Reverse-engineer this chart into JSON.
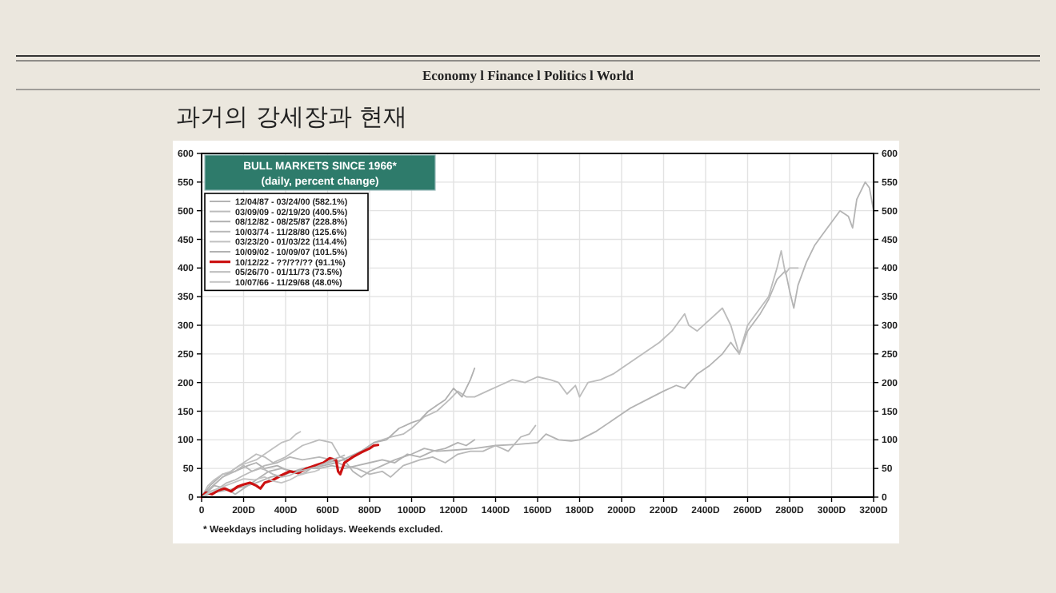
{
  "chart_data": {
    "type": "line",
    "title": "과거의 강세장과 현재",
    "subtitle": "BULL MARKETS SINCE 1966*",
    "legend_title": "(daily, percent change)",
    "annotations": [
      "Economy l Finance l Politics l World",
      "* Weekdays including holidays. Weekends excluded."
    ],
    "xlim": [
      0,
      3200
    ],
    "xticks": [
      0,
      {
        "value": 200,
        "label": "200D"
      },
      {
        "value": 400,
        "label": "400D"
      },
      {
        "value": 600,
        "label": "600D"
      },
      {
        "value": 800,
        "label": "800D"
      },
      {
        "value": 1000,
        "label": "1000D"
      },
      {
        "value": 1200,
        "label": "1200D"
      },
      {
        "value": 1400,
        "label": "1400D"
      },
      {
        "value": 1600,
        "label": "1600D"
      },
      {
        "value": 1800,
        "label": "1800D"
      },
      {
        "value": 2000,
        "label": "2000D"
      },
      {
        "value": 2200,
        "label": "2200D"
      },
      {
        "value": 2400,
        "label": "2400D"
      },
      {
        "value": 2600,
        "label": "2600D"
      },
      {
        "value": 2800,
        "label": "2800D"
      },
      {
        "value": 3000,
        "label": "3000D"
      },
      {
        "value": 3200,
        "label": "3200D"
      }
    ],
    "ylim": [
      0,
      600
    ],
    "yticks": [
      0,
      50,
      100,
      150,
      200,
      250,
      300,
      350,
      400,
      450,
      500,
      550,
      600
    ],
    "y2lim": [
      0,
      600
    ],
    "y2ticks": [
      0,
      50,
      100,
      150,
      200,
      250,
      300,
      350,
      400,
      450,
      500,
      550,
      600
    ],
    "grid": true,
    "legend": "top left",
    "line_style": "solid",
    "marker": "none",
    "series": [
      {
        "name": "12/04/87 - 03/24/00 (582.1%)",
        "color": "#b4b4b4",
        "x": [
          0,
          60,
          120,
          200,
          260,
          330,
          400,
          480,
          550,
          620,
          680,
          720,
          760,
          800,
          860,
          920,
          1000,
          1060,
          1120,
          1200,
          1300,
          1400,
          1500,
          1600,
          1640,
          1700,
          1760,
          1800,
          1880,
          1960,
          2040,
          2120,
          2200,
          2260,
          2300,
          2360,
          2420,
          2480,
          2520,
          2560,
          2600,
          2660,
          2700,
          2740,
          2780,
          2800,
          2820,
          2840,
          2880,
          2920,
          2960,
          3000,
          3040,
          3080,
          3100,
          3120,
          3160,
          3180,
          3200
        ],
        "values": [
          0,
          8,
          12,
          18,
          25,
          35,
          40,
          50,
          55,
          62,
          65,
          45,
          35,
          45,
          55,
          65,
          75,
          85,
          80,
          82,
          85,
          90,
          92,
          95,
          110,
          100,
          98,
          100,
          115,
          135,
          155,
          170,
          185,
          195,
          190,
          215,
          230,
          250,
          270,
          250,
          290,
          320,
          345,
          380,
          395,
          360,
          330,
          370,
          410,
          440,
          460,
          480,
          500,
          490,
          470,
          520,
          550,
          540,
          500
        ]
      },
      {
        "name": "03/09/09 - 02/19/20 (400.5%)",
        "color": "#bcbcbc",
        "x": [
          0,
          40,
          100,
          180,
          260,
          300,
          340,
          400,
          480,
          560,
          620,
          660,
          700,
          760,
          820,
          900,
          960,
          1000,
          1060,
          1120,
          1180,
          1220,
          1260,
          1300,
          1360,
          1420,
          1480,
          1540,
          1600,
          1660,
          1700,
          1740,
          1780,
          1800,
          1840,
          1900,
          1960,
          2000,
          2060,
          2120,
          2180,
          2240,
          2300,
          2320,
          2360,
          2420,
          2480,
          2520,
          2560,
          2600,
          2660,
          2700,
          2740,
          2760,
          2780,
          2800,
          2840
        ],
        "values": [
          0,
          15,
          35,
          55,
          75,
          70,
          60,
          70,
          90,
          100,
          95,
          70,
          65,
          80,
          95,
          105,
          110,
          120,
          140,
          150,
          170,
          185,
          175,
          175,
          185,
          195,
          205,
          200,
          210,
          205,
          200,
          180,
          195,
          175,
          200,
          205,
          215,
          225,
          240,
          255,
          270,
          290,
          320,
          300,
          290,
          310,
          330,
          300,
          250,
          300,
          330,
          350,
          400,
          430,
          390,
          400,
          400
        ]
      },
      {
        "name": "08/12/82 - 08/25/87 (228.8%)",
        "color": "#b0b0b0",
        "x": [
          0,
          40,
          100,
          160,
          220,
          260,
          300,
          360,
          420,
          480,
          520,
          580,
          640,
          700,
          760,
          820,
          880,
          940,
          1000,
          1040,
          1080,
          1120,
          1160,
          1200,
          1240,
          1280,
          1300
        ],
        "values": [
          0,
          20,
          40,
          45,
          55,
          60,
          50,
          55,
          45,
          40,
          50,
          55,
          60,
          70,
          80,
          95,
          100,
          120,
          130,
          135,
          150,
          160,
          170,
          190,
          175,
          205,
          225
        ]
      },
      {
        "name": "10/03/74 - 11/28/80 (125.6%)",
        "color": "#b8b8b8",
        "x": [
          0,
          40,
          100,
          160,
          200,
          240,
          300,
          360,
          420,
          480,
          560,
          620,
          680,
          740,
          800,
          860,
          900,
          960,
          1040,
          1100,
          1160,
          1220,
          1280,
          1340,
          1400,
          1460,
          1520,
          1560,
          1590
        ],
        "values": [
          0,
          15,
          35,
          45,
          55,
          45,
          55,
          60,
          70,
          65,
          70,
          65,
          55,
          50,
          40,
          45,
          35,
          55,
          65,
          70,
          60,
          75,
          80,
          80,
          90,
          80,
          105,
          110,
          125
        ]
      },
      {
        "name": "03/23/20 - 01/03/22 (114.4%)",
        "color": "#c0c0c0",
        "x": [
          0,
          30,
          60,
          100,
          140,
          180,
          220,
          260,
          300,
          340,
          380,
          420,
          450,
          470
        ],
        "values": [
          0,
          20,
          30,
          40,
          45,
          55,
          60,
          65,
          75,
          85,
          95,
          100,
          110,
          114
        ]
      },
      {
        "name": "10/09/02 - 10/09/07 (101.5%)",
        "color": "#b2b2b2",
        "x": [
          0,
          60,
          120,
          160,
          200,
          260,
          320,
          380,
          440,
          500,
          560,
          620,
          680,
          740,
          800,
          860,
          920,
          980,
          1040,
          1100,
          1160,
          1220,
          1260,
          1300
        ],
        "values": [
          0,
          20,
          15,
          5,
          15,
          30,
          45,
          50,
          45,
          50,
          50,
          55,
          50,
          55,
          60,
          65,
          60,
          75,
          70,
          80,
          85,
          95,
          90,
          100
        ]
      },
      {
        "name": "10/12/22 - ??/??/?? (91.1%)",
        "color": "#cc1111",
        "x": [
          0,
          20,
          50,
          80,
          110,
          140,
          170,
          200,
          230,
          260,
          280,
          300,
          340,
          380,
          420,
          460,
          500,
          540,
          580,
          610,
          640,
          650,
          660,
          680,
          720,
          760,
          800,
          820,
          840
        ],
        "values": [
          0,
          8,
          5,
          12,
          15,
          10,
          18,
          22,
          25,
          20,
          15,
          25,
          30,
          38,
          45,
          42,
          50,
          55,
          60,
          68,
          65,
          45,
          40,
          60,
          70,
          78,
          85,
          90,
          91
        ]
      },
      {
        "name": "05/26/70 - 01/11/73 (73.5%)",
        "color": "#bababa",
        "x": [
          0,
          40,
          80,
          120,
          160,
          200,
          240,
          280,
          300,
          340,
          380,
          420,
          460,
          500,
          540,
          580,
          620,
          660,
          680
        ],
        "values": [
          0,
          10,
          15,
          25,
          30,
          38,
          45,
          50,
          48,
          40,
          35,
          38,
          45,
          48,
          52,
          58,
          65,
          70,
          73
        ]
      },
      {
        "name": "10/07/66 - 11/29/68 (48.0%)",
        "color": "#c4c4c4",
        "x": [
          0,
          50,
          100,
          150,
          200,
          250,
          300,
          340,
          380,
          420,
          460,
          500,
          540,
          560
        ],
        "values": [
          0,
          10,
          18,
          25,
          32,
          30,
          35,
          28,
          25,
          30,
          38,
          42,
          45,
          48
        ]
      }
    ]
  }
}
